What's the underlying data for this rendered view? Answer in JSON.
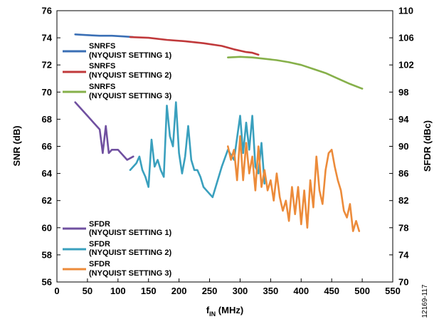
{
  "figure_id": "12169-117",
  "chart_data": {
    "type": "line",
    "title": "",
    "xlabel_main": "f",
    "xlabel_sub": "IN",
    "xlabel_unit": " (MHz)",
    "ylabel_left": "SNR (dB)",
    "ylabel_right": "SFDR (dBc)",
    "xlim": [
      0,
      550
    ],
    "ylim_left": [
      56,
      76
    ],
    "ylim_right": [
      70,
      110
    ],
    "x_ticks": [
      "0",
      "50",
      "100",
      "150",
      "200",
      "250",
      "300",
      "350",
      "400",
      "450",
      "500",
      "550"
    ],
    "y_left_ticks": [
      "56",
      "58",
      "60",
      "62",
      "64",
      "66",
      "68",
      "70",
      "72",
      "74",
      "76"
    ],
    "y_right_ticks": [
      "70",
      "74",
      "78",
      "82",
      "86",
      "90",
      "94",
      "98",
      "102",
      "106",
      "110"
    ],
    "grid": false,
    "legend_snr": [
      {
        "line1": "SNRFS",
        "line2": "(NYQUIST SETTING 1)",
        "color": "#3a6fb5"
      },
      {
        "line1": "SNRFS",
        "line2": "(NYQUIST SETTING 2)",
        "color": "#c0393b"
      },
      {
        "line1": "SNRFS",
        "line2": "(NYQUIST SETTING 3)",
        "color": "#86b04a"
      }
    ],
    "legend_sfdr": [
      {
        "line1": "SFDR",
        "line2": "(NYQUIST SETTING 1)",
        "color": "#7050a0"
      },
      {
        "line1": "SFDR",
        "line2": "(NYQUIST SETTING 2)",
        "color": "#3aa0be"
      },
      {
        "line1": "SFDR",
        "line2": "(NYQUIST SETTING 3)",
        "color": "#ec8b3a"
      }
    ],
    "series": [
      {
        "key": "snr1",
        "axis": "left",
        "color": "#3a6fb5",
        "x": [
          30,
          50,
          70,
          90,
          110,
          125
        ],
        "y": [
          74.25,
          74.2,
          74.15,
          74.15,
          74.1,
          74.05
        ]
      },
      {
        "key": "snr2",
        "axis": "left",
        "color": "#c0393b",
        "x": [
          120,
          150,
          180,
          210,
          240,
          270,
          290,
          310,
          320,
          330
        ],
        "y": [
          74.05,
          74.0,
          73.85,
          73.75,
          73.6,
          73.4,
          73.15,
          72.95,
          72.9,
          72.75
        ]
      },
      {
        "key": "snr3",
        "axis": "left",
        "color": "#86b04a",
        "x": [
          280,
          300,
          320,
          340,
          360,
          380,
          400,
          420,
          440,
          460,
          480,
          500
        ],
        "y": [
          72.55,
          72.6,
          72.55,
          72.45,
          72.35,
          72.2,
          72.0,
          71.7,
          71.4,
          71.0,
          70.6,
          70.25
        ]
      },
      {
        "key": "sfdr1",
        "axis": "right",
        "color": "#7050a0",
        "x": [
          30,
          40,
          50,
          60,
          70,
          75,
          80,
          85,
          90,
          95,
          100,
          110,
          115,
          125
        ],
        "y": [
          96.5,
          95.5,
          94.5,
          93.5,
          92.5,
          89.0,
          93.0,
          89.0,
          89.5,
          89.5,
          89.5,
          88.5,
          88.0,
          88.5
        ]
      },
      {
        "key": "sfdr2",
        "axis": "right",
        "color": "#3aa0be",
        "x": [
          120,
          130,
          135,
          140,
          145,
          150,
          155,
          160,
          165,
          170,
          175,
          180,
          185,
          190,
          195,
          200,
          205,
          210,
          215,
          220,
          225,
          230,
          235,
          240,
          250,
          255,
          260,
          270,
          280,
          290,
          300,
          305,
          310,
          315,
          320,
          325,
          330,
          335,
          340
        ],
        "y": [
          86.5,
          87.5,
          88.5,
          86.5,
          85.5,
          84.0,
          91.0,
          87.0,
          88.0,
          86.5,
          85.5,
          96.0,
          91.5,
          90.0,
          96.5,
          89.0,
          86.0,
          88.5,
          93.0,
          88.0,
          86.5,
          86.5,
          85.5,
          84.0,
          83.0,
          82.5,
          84.0,
          87.0,
          89.5,
          88.0,
          94.5,
          89.0,
          93.5,
          89.5,
          94.5,
          87.0,
          86.0,
          90.5,
          84.5
        ]
      },
      {
        "key": "sfdr3",
        "axis": "right",
        "color": "#ec8b3a",
        "x": [
          280,
          285,
          290,
          295,
          300,
          305,
          310,
          315,
          320,
          325,
          330,
          335,
          340,
          345,
          350,
          355,
          360,
          365,
          370,
          375,
          380,
          385,
          390,
          395,
          400,
          405,
          410,
          415,
          420,
          425,
          430,
          435,
          440,
          445,
          450,
          455,
          460,
          465,
          470,
          475,
          480,
          485,
          490,
          495
        ],
        "y": [
          90.0,
          88.0,
          89.5,
          85.0,
          91.5,
          85.0,
          90.5,
          86.0,
          88.5,
          83.5,
          90.0,
          84.0,
          86.5,
          83.5,
          85.0,
          82.0,
          86.0,
          82.5,
          80.5,
          82.0,
          79.0,
          84.0,
          80.0,
          84.0,
          78.5,
          83.5,
          78.0,
          85.0,
          81.0,
          88.5,
          83.5,
          81.5,
          86.5,
          89.0,
          89.5,
          87.0,
          85.0,
          83.5,
          80.5,
          79.5,
          81.5,
          77.5,
          79.0,
          77.5
        ]
      }
    ]
  }
}
